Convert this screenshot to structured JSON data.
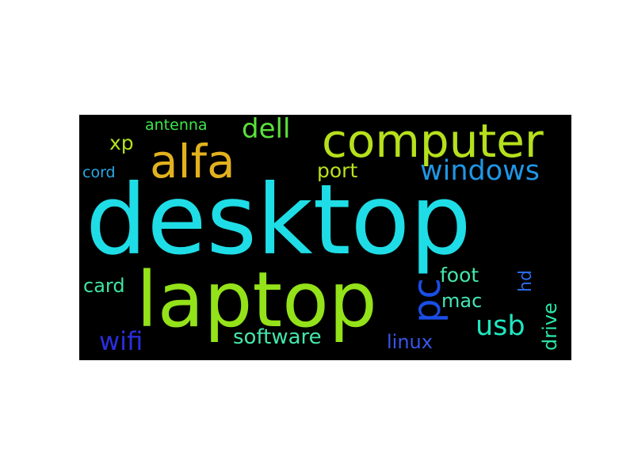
{
  "word_cloud": {
    "background": "#000000",
    "words": {
      "desktop": {
        "text": "desktop",
        "color": "#1fdde6"
      },
      "laptop": {
        "text": "laptop",
        "color": "#93e21a"
      },
      "computer": {
        "text": "computer",
        "color": "#b6e01c"
      },
      "alfa": {
        "text": "alfa",
        "color": "#e2b21e"
      },
      "windows": {
        "text": "windows",
        "color": "#1f96e6"
      },
      "dell": {
        "text": "dell",
        "color": "#5be13a"
      },
      "usb": {
        "text": "usb",
        "color": "#1fe6bf"
      },
      "pc": {
        "text": "pc",
        "color": "#1a4ee6"
      },
      "wifi": {
        "text": "wifi",
        "color": "#2a2ee0"
      },
      "software": {
        "text": "software",
        "color": "#44e6a8"
      },
      "linux": {
        "text": "linux",
        "color": "#3a55e8"
      },
      "foot": {
        "text": "foot",
        "color": "#44e6a8"
      },
      "mac": {
        "text": "mac",
        "color": "#44e6b4"
      },
      "card": {
        "text": "card",
        "color": "#3ee6a0"
      },
      "port": {
        "text": "port",
        "color": "#b8e21c"
      },
      "xp": {
        "text": "xp",
        "color": "#b0e21c"
      },
      "antenna": {
        "text": "antenna",
        "color": "#3ee64a"
      },
      "cord": {
        "text": "cord",
        "color": "#2aa8e6"
      },
      "hd": {
        "text": "hd",
        "color": "#2a6ae6"
      },
      "drive": {
        "text": "drive",
        "color": "#2ae6a6"
      }
    }
  }
}
